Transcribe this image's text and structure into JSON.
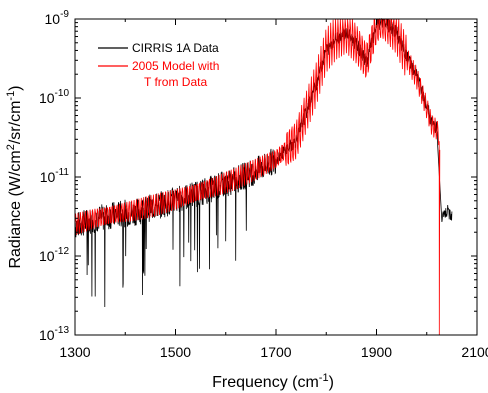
{
  "chart_data": {
    "type": "line",
    "xlabel": "Frequency (cm",
    "xlabel_sup": "-1",
    "xlabel_tail": ")",
    "ylabel_parts": [
      "Radiance (W/cm",
      "2",
      "/sr/cm",
      "-1",
      ")"
    ],
    "xlim": [
      1300,
      2100
    ],
    "ylim": [
      1e-13,
      1e-09
    ],
    "yscale": "log",
    "x_ticks": [
      1300,
      1500,
      1700,
      1900,
      2100
    ],
    "x_tick_labels": [
      "1300",
      "1500",
      "1700",
      "1900",
      "2100"
    ],
    "y_ticks": [
      1e-13,
      1e-12,
      1e-11,
      1e-10,
      1e-09
    ],
    "y_tick_labels": [
      {
        "base": "10",
        "exp": "-13"
      },
      {
        "base": "10",
        "exp": "-12"
      },
      {
        "base": "10",
        "exp": "-11"
      },
      {
        "base": "10",
        "exp": "-10"
      },
      {
        "base": "10",
        "exp": "-9"
      }
    ],
    "grid": false,
    "legend_position": "top-left",
    "series": [
      {
        "name": "CIRRIS 1A Data",
        "color": "#000000",
        "x": [
          1300,
          1340,
          1380,
          1420,
          1460,
          1500,
          1540,
          1580,
          1620,
          1660,
          1700,
          1740,
          1780,
          1800,
          1820,
          1840,
          1860,
          1880,
          1900,
          1910,
          1920,
          1940,
          1960,
          1980,
          2000,
          2010,
          2020,
          2030,
          2040,
          2050
        ],
        "y": [
          2.6e-12,
          3.2e-12,
          3.6e-12,
          3.9e-12,
          4.6e-12,
          5.5e-12,
          6.6e-12,
          8e-12,
          1e-11,
          1.3e-11,
          1.8e-11,
          3e-11,
          1.6e-10,
          4.2e-10,
          6e-10,
          7e-10,
          5e-10,
          3e-10,
          8.5e-10,
          1e-09,
          9e-10,
          7e-10,
          3.5e-10,
          2e-10,
          8.5e-11,
          5e-11,
          4.5e-11,
          3e-12,
          3.8e-12,
          3.5e-12
        ]
      },
      {
        "name": "2005 Model with T from Data",
        "color": "#ff0000",
        "x": [
          1300,
          1340,
          1380,
          1420,
          1460,
          1500,
          1540,
          1580,
          1620,
          1660,
          1700,
          1740,
          1780,
          1800,
          1820,
          1840,
          1860,
          1880,
          1900,
          1910,
          1920,
          1940,
          1960,
          1980,
          2000,
          2010,
          2020,
          2025
        ],
        "y": [
          2.5e-12,
          3e-12,
          3.4e-12,
          3.8e-12,
          4.4e-12,
          5.2e-12,
          6.3e-12,
          7.6e-12,
          9.5e-12,
          1.25e-11,
          1.7e-11,
          2.9e-11,
          1.5e-10,
          4e-10,
          5.8e-10,
          6.8e-10,
          4.8e-10,
          2.9e-10,
          8.2e-10,
          1e-09,
          8.8e-10,
          6.6e-10,
          3.2e-10,
          1.8e-10,
          7.5e-11,
          4.5e-11,
          4e-11,
          3.2e-11
        ]
      }
    ],
    "legend": [
      {
        "lines": [
          "CIRRIS 1A Data"
        ],
        "color": "#000000"
      },
      {
        "lines": [
          "2005 Model with",
          "T from Data"
        ],
        "color": "#ff0000"
      }
    ]
  }
}
